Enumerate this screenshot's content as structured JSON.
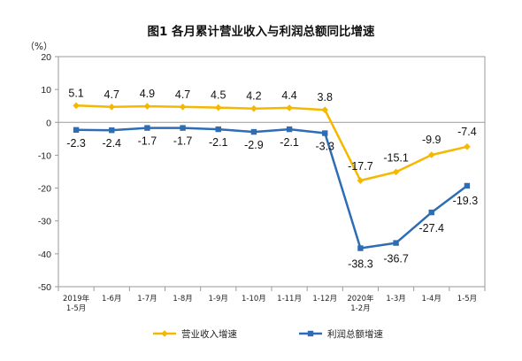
{
  "chart_data": {
    "type": "line",
    "title": "图1  各月累计营业收入与利润总额同比增速",
    "unit_label": "（%）",
    "ylim": [
      -50,
      20
    ],
    "yticks": [
      "20",
      "10",
      "0",
      "-10",
      "-20",
      "-30",
      "-40",
      "-50"
    ],
    "ytick_values": [
      20,
      10,
      0,
      -10,
      -20,
      -30,
      -40,
      -50
    ],
    "grid": false,
    "legend_position": "bottom",
    "categories": [
      [
        "2019年",
        "1-5月"
      ],
      [
        "1-6月"
      ],
      [
        "1-7月"
      ],
      [
        "1-8月"
      ],
      [
        "1-9月"
      ],
      [
        "1-10月"
      ],
      [
        "1-11月"
      ],
      [
        "1-12月"
      ],
      [
        "2020年",
        "1-2月"
      ],
      [
        "1-3月"
      ],
      [
        "1-4月"
      ],
      [
        "1-5月"
      ]
    ],
    "series": [
      {
        "name": "营业收入增速",
        "color": "#F5B800",
        "marker": "diamond",
        "values": [
          5.1,
          4.7,
          4.9,
          4.7,
          4.5,
          4.2,
          4.4,
          3.8,
          -17.7,
          -15.1,
          -9.9,
          -7.4
        ],
        "labels": [
          "5.1",
          "4.7",
          "4.9",
          "4.7",
          "4.5",
          "4.2",
          "4.4",
          "3.8",
          "-17.7",
          "-15.1",
          "-9.9",
          "-7.4"
        ]
      },
      {
        "name": "利润总额增速",
        "color": "#2E6DB4",
        "marker": "square",
        "values": [
          -2.3,
          -2.4,
          -1.7,
          -1.7,
          -2.1,
          -2.9,
          -2.1,
          -3.3,
          -38.3,
          -36.7,
          -27.4,
          -19.3
        ],
        "labels": [
          "-2.3",
          "-2.4",
          "-1.7",
          "-1.7",
          "-2.1",
          "-2.9",
          "-2.1",
          "-3.3",
          "-38.3",
          "-36.7",
          "-27.4",
          "-19.3"
        ]
      }
    ]
  }
}
